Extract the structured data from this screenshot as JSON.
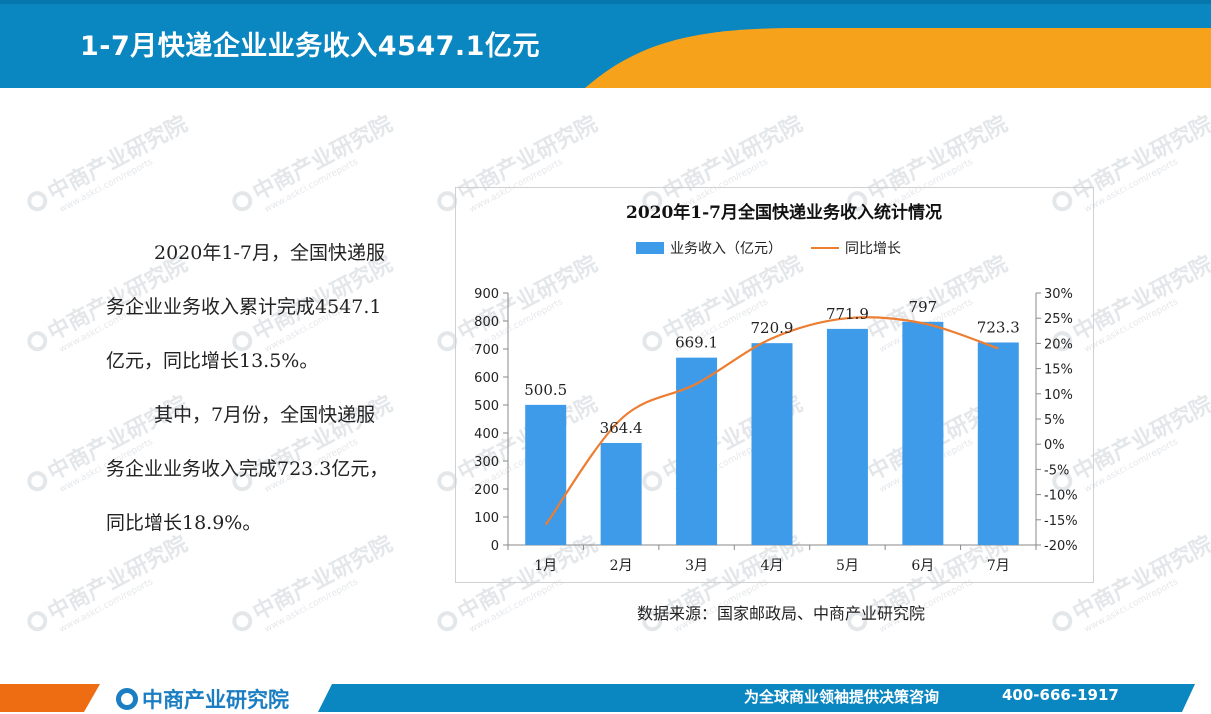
{
  "header": {
    "title": "1-7月快递企业业务收入4547.1亿元"
  },
  "paragraphs": {
    "p1_line1": "2020年1-7月，全国快递服",
    "p1_line2": "务企业业务收入累计完成4547.1",
    "p1_line3": "亿元，同比增长13.5%。",
    "p2_line1": "其中，7月份，全国快递服",
    "p2_line2": "务企业业务收入完成723.3亿元，",
    "p2_line3": "同比增长18.9%。"
  },
  "chart_data": {
    "type": "bar",
    "title": "2020年1-7月全国快递业务收入统计情况",
    "categories": [
      "1月",
      "2月",
      "3月",
      "4月",
      "5月",
      "6月",
      "7月"
    ],
    "series": [
      {
        "name": "业务收入（亿元）",
        "type": "bar",
        "axis": "left",
        "values": [
          500.5,
          364.4,
          669.1,
          720.9,
          771.9,
          797,
          723.3
        ],
        "labels": [
          "500.5",
          "364.4",
          "669.1",
          "720.9",
          "771.9",
          "797",
          "723.3"
        ],
        "color": "#3d9be9"
      },
      {
        "name": "同比增长",
        "type": "line",
        "axis": "right",
        "values": [
          -16,
          5,
          12,
          21,
          25,
          24,
          19
        ],
        "color": "#ed7d31"
      }
    ],
    "y_left": {
      "ylim": [
        0,
        900
      ],
      "ticks": [
        "0",
        "100",
        "200",
        "300",
        "400",
        "500",
        "600",
        "700",
        "800",
        "900"
      ]
    },
    "y_right": {
      "ylim": [
        -20,
        30
      ],
      "ticks": [
        "-20%",
        "-15%",
        "-10%",
        "-5%",
        "0%",
        "5%",
        "10%",
        "15%",
        "20%",
        "25%",
        "30%"
      ]
    },
    "legend": "top",
    "grid": false
  },
  "source": "数据来源：国家邮政局、中商产业研究院",
  "footer": {
    "logo_text": "中商产业研究院",
    "slogan": "为全球商业领袖提供决策咨询",
    "phone": "400-666-1917"
  },
  "watermark": {
    "text": "中商产业研究院",
    "sub": "www.askci.com/reports"
  },
  "colors": {
    "header_blue": "#0a86c0",
    "header_orange": "#f7a21b",
    "bar": "#3d9be9",
    "line": "#ed7d31"
  }
}
